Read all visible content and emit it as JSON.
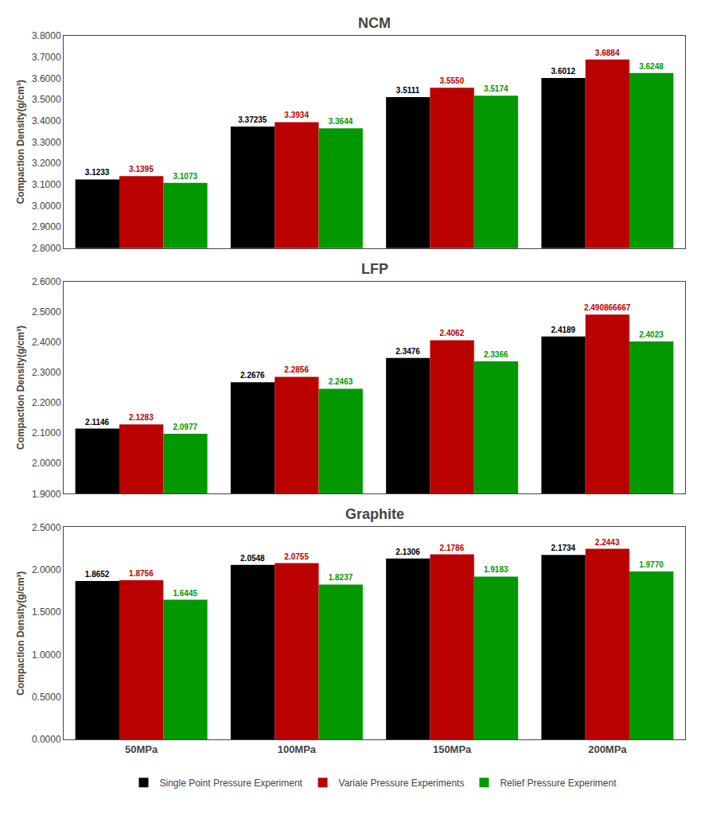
{
  "chart_data": [
    {
      "type": "bar",
      "title": "NCM",
      "categories": [
        "50MPa",
        "100MPa",
        "150MPa",
        "200MPa"
      ],
      "series": [
        {
          "name": "Single Point Pressure Experiment",
          "color": "#000000",
          "values": [
            3.1233,
            3.37235,
            3.5111,
            3.6012
          ],
          "value_labels": [
            "3.1233",
            "3.37235",
            "3.5111",
            "3.6012"
          ]
        },
        {
          "name": "Variale Pressure Experiments",
          "color": "#bb0000",
          "values": [
            3.1395,
            3.3934,
            3.555,
            3.6884
          ],
          "value_labels": [
            "3.1395",
            "3.3934",
            "3.5550",
            "3.6884"
          ]
        },
        {
          "name": "Relief Pressure Experiment",
          "color": "#009900",
          "values": [
            3.1073,
            3.3644,
            3.5174,
            3.6248
          ],
          "value_labels": [
            "3.1073",
            "3.3644",
            "3.5174",
            "3.6248"
          ]
        }
      ],
      "ylim": [
        2.8,
        3.8
      ],
      "yticks": [
        {
          "value": 2.8,
          "label": "2.8000"
        },
        {
          "value": 2.9,
          "label": "2.9000"
        },
        {
          "value": 3.0,
          "label": "3.0000"
        },
        {
          "value": 3.1,
          "label": "3.1000"
        },
        {
          "value": 3.2,
          "label": "3.2000"
        },
        {
          "value": 3.3,
          "label": "3.3000"
        },
        {
          "value": 3.4,
          "label": "3.4000"
        },
        {
          "value": 3.5,
          "label": "3.5000"
        },
        {
          "value": 3.6,
          "label": "3.6000"
        },
        {
          "value": 3.7,
          "label": "3.7000"
        },
        {
          "value": 3.8,
          "label": "3.8000"
        }
      ],
      "ylabel": "Compaction Density(g/cm³)",
      "grid": false,
      "data_labels": true,
      "tick_labels": "y",
      "legend": "bottom"
    },
    {
      "type": "bar",
      "title": "LFP",
      "categories": [
        "50MPa",
        "100MPa",
        "150MPa",
        "200MPa"
      ],
      "series": [
        {
          "name": "Single Point Pressure Experiment",
          "color": "#000000",
          "values": [
            2.1146,
            2.2676,
            2.3476,
            2.4189
          ],
          "value_labels": [
            "2.1146",
            "2.2676",
            "2.3476",
            "2.4189"
          ]
        },
        {
          "name": "Variale Pressure Experiments",
          "color": "#bb0000",
          "values": [
            2.1283,
            2.2856,
            2.4062,
            2.490866667
          ],
          "value_labels": [
            "2.1283",
            "2.2856",
            "2.4062",
            "2.490866667"
          ]
        },
        {
          "name": "Relief Pressure Experiment",
          "color": "#009900",
          "values": [
            2.0977,
            2.2463,
            2.3366,
            2.4023
          ],
          "value_labels": [
            "2.0977",
            "2.2463",
            "2.3366",
            "2.4023"
          ]
        }
      ],
      "ylim": [
        1.9,
        2.6
      ],
      "yticks": [
        {
          "value": 1.9,
          "label": "1.9000"
        },
        {
          "value": 2.0,
          "label": "2.0000"
        },
        {
          "value": 2.1,
          "label": "2.1000"
        },
        {
          "value": 2.2,
          "label": "2.2000"
        },
        {
          "value": 2.3,
          "label": "2.3000"
        },
        {
          "value": 2.4,
          "label": "2.4000"
        },
        {
          "value": 2.5,
          "label": "2.5000"
        },
        {
          "value": 2.6,
          "label": "2.6000"
        }
      ],
      "ylabel": "Compaction Density(g/cm³)",
      "grid": false,
      "data_labels": true,
      "tick_labels": "y",
      "legend": "bottom"
    },
    {
      "type": "bar",
      "title": "Graphite",
      "categories": [
        "50MPa",
        "100MPa",
        "150MPa",
        "200MPa"
      ],
      "series": [
        {
          "name": "Single Point Pressure Experiment",
          "color": "#000000",
          "values": [
            1.8652,
            2.0548,
            2.1306,
            2.1734
          ],
          "value_labels": [
            "1.8652",
            "2.0548",
            "2.1306",
            "2.1734"
          ]
        },
        {
          "name": "Variale Pressure Experiments",
          "color": "#bb0000",
          "values": [
            1.8756,
            2.0755,
            2.1786,
            2.2443
          ],
          "value_labels": [
            "1.8756",
            "2.0755",
            "2.1786",
            "2.2443"
          ]
        },
        {
          "name": "Relief Pressure Experiment",
          "color": "#009900",
          "values": [
            1.6445,
            1.8237,
            1.9183,
            1.977
          ],
          "value_labels": [
            "1.6445",
            "1.8237",
            "1.9183",
            "1.9770"
          ]
        }
      ],
      "ylim": [
        0.0,
        2.5
      ],
      "yticks": [
        {
          "value": 0.0,
          "label": "0.0000"
        },
        {
          "value": 0.5,
          "label": "0.5000"
        },
        {
          "value": 1.0,
          "label": "1.0000"
        },
        {
          "value": 1.5,
          "label": "1.5000"
        },
        {
          "value": 2.0,
          "label": "2.0000"
        },
        {
          "value": 2.5,
          "label": "2.5000"
        }
      ],
      "ylabel": "Compaction Density(g/cm³)",
      "grid": false,
      "data_labels": true,
      "legend": "bottom"
    }
  ]
}
